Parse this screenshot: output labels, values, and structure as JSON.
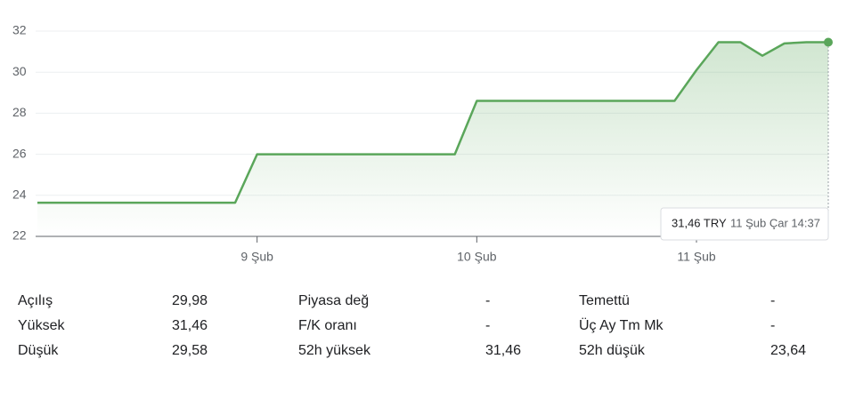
{
  "chart_data": {
    "type": "line",
    "categories": [
      null,
      null,
      null,
      null,
      null,
      null,
      null,
      null,
      null,
      null,
      "9 Şub",
      null,
      null,
      null,
      null,
      null,
      null,
      null,
      null,
      null,
      "10 Şub",
      null,
      null,
      null,
      null,
      null,
      null,
      null,
      null,
      null,
      "11 Şub",
      null,
      null,
      null,
      null,
      null,
      null
    ],
    "series": [
      {
        "color": "#5aa65a",
        "values": [
          23.64,
          23.64,
          23.64,
          23.64,
          23.64,
          23.64,
          23.64,
          23.64,
          23.64,
          23.64,
          26,
          26,
          26,
          26,
          26,
          26,
          26,
          26,
          26,
          26,
          28.6,
          28.6,
          28.6,
          28.6,
          28.6,
          28.6,
          28.6,
          28.6,
          28.6,
          28.6,
          30.1,
          31.46,
          31.46,
          30.8,
          31.4,
          31.46,
          31.46
        ]
      }
    ],
    "ylim": [
      22,
      32
    ],
    "yticks": [
      22,
      24,
      26,
      28,
      30,
      32
    ],
    "grid": true,
    "tooltip": {
      "price": "31,46 TRY",
      "time": "11 Şub Çar 14:37"
    }
  },
  "stats": {
    "rows": [
      [
        "Açılış",
        "29,98",
        "Piyasa değ",
        "-",
        "Temettü",
        "-"
      ],
      [
        "Yüksek",
        "31,46",
        "F/K oranı",
        "-",
        "Üç Ay Tm Mk",
        "-"
      ],
      [
        "Düşük",
        "29,58",
        "52h yüksek",
        "31,46",
        "52h düşük",
        "23,64"
      ]
    ]
  }
}
